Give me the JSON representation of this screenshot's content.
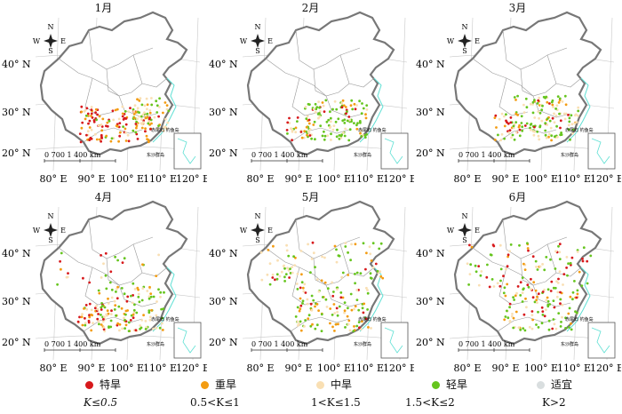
{
  "panels": [
    {
      "title": "1月",
      "pattern": "jan"
    },
    {
      "title": "2月",
      "pattern": "feb"
    },
    {
      "title": "3月",
      "pattern": "mar"
    },
    {
      "title": "4月",
      "pattern": "apr"
    },
    {
      "title": "5月",
      "pattern": "may"
    },
    {
      "title": "6月",
      "pattern": "jun"
    }
  ],
  "map_text": {
    "lat_labels": [
      "40° N",
      "30° N",
      "20° N"
    ],
    "lon_labels": [
      "80° E",
      "90° E",
      "100° E",
      "110° E",
      "120° E"
    ],
    "compass": {
      "n": "N",
      "s": "S",
      "w": "W",
      "e": "E"
    },
    "scalebar": "0    700 1 400 km",
    "diaoyu": "赤尾屿 钓鱼岛",
    "dongsha": "东沙群岛"
  },
  "legend": [
    {
      "label": "特旱",
      "condition": "K≤0.5",
      "color": "#d7191c"
    },
    {
      "label": "重旱",
      "condition": "0.5<K≤1",
      "color": "#f39c12"
    },
    {
      "label": "中旱",
      "condition": "1<K≤1.5",
      "color": "#f9dfb3"
    },
    {
      "label": "轻旱",
      "condition": "1.5<K≤2",
      "color": "#66c51e"
    },
    {
      "label": "适宜",
      "condition": "K>2",
      "color": "#d9dedf"
    }
  ]
}
